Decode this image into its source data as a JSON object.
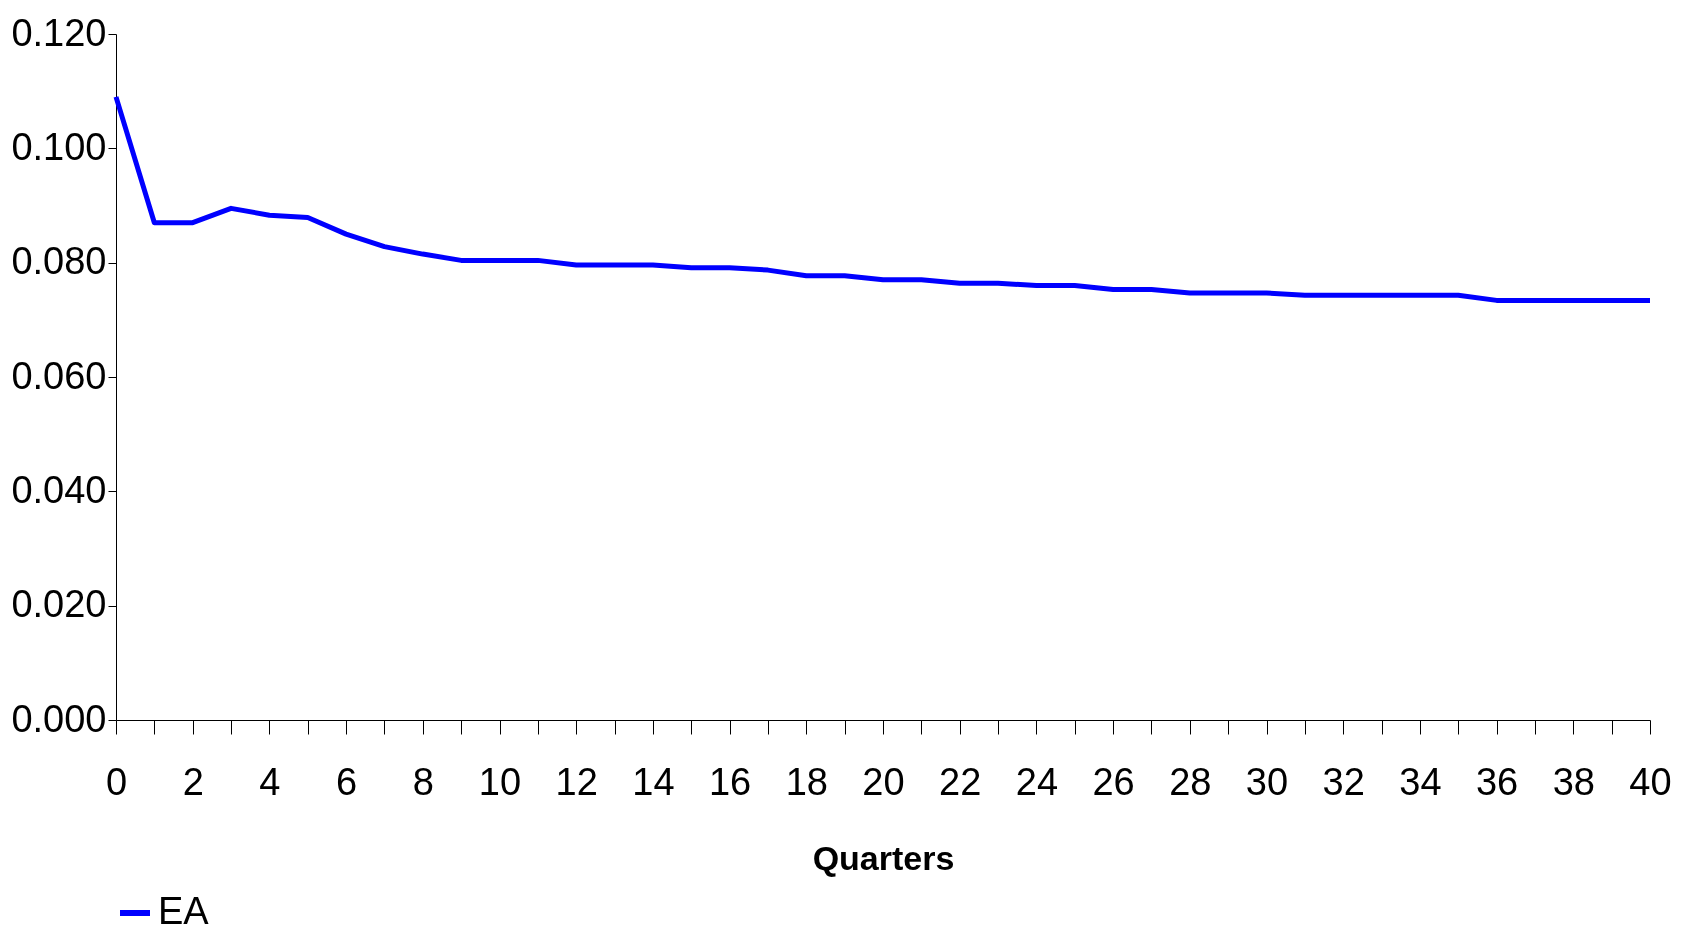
{
  "chart_data": {
    "type": "line",
    "xlabel": "Quarters",
    "x": [
      0,
      1,
      2,
      3,
      4,
      5,
      6,
      7,
      8,
      9,
      10,
      11,
      12,
      13,
      14,
      15,
      16,
      17,
      18,
      19,
      20,
      21,
      22,
      23,
      24,
      25,
      26,
      27,
      28,
      29,
      30,
      31,
      32,
      33,
      34,
      35,
      36,
      37,
      38,
      39,
      40
    ],
    "series": [
      {
        "name": "EA",
        "color": "#0000ff",
        "values": [
          0.109,
          0.087,
          0.087,
          0.0895,
          0.0883,
          0.0879,
          0.085,
          0.0828,
          0.0815,
          0.0804,
          0.0804,
          0.0804,
          0.0796,
          0.0796,
          0.0796,
          0.0791,
          0.0791,
          0.0787,
          0.0777,
          0.0777,
          0.077,
          0.077,
          0.0764,
          0.0764,
          0.076,
          0.076,
          0.0753,
          0.0753,
          0.0747,
          0.0747,
          0.0747,
          0.0743,
          0.0743,
          0.0743,
          0.0743,
          0.0743,
          0.0734,
          0.0734,
          0.0734,
          0.0734,
          0.0734
        ]
      }
    ],
    "xlim": [
      0,
      40
    ],
    "xticks": [
      0,
      {
        "value": 1,
        "label": null
      },
      2,
      {
        "value": 3,
        "label": null
      },
      4,
      {
        "value": 5,
        "label": null
      },
      6,
      {
        "value": 7,
        "label": null
      },
      8,
      {
        "value": 9,
        "label": null
      },
      10,
      {
        "value": 11,
        "label": null
      },
      12,
      {
        "value": 13,
        "label": null
      },
      14,
      {
        "value": 15,
        "label": null
      },
      16,
      {
        "value": 17,
        "label": null
      },
      18,
      {
        "value": 19,
        "label": null
      },
      20,
      {
        "value": 21,
        "label": null
      },
      22,
      {
        "value": 23,
        "label": null
      },
      24,
      {
        "value": 25,
        "label": null
      },
      26,
      {
        "value": 27,
        "label": null
      },
      28,
      {
        "value": 29,
        "label": null
      },
      30,
      {
        "value": 31,
        "label": null
      },
      32,
      {
        "value": 33,
        "label": null
      },
      34,
      {
        "value": 35,
        "label": null
      },
      36,
      {
        "value": 37,
        "label": null
      },
      38,
      {
        "value": 39,
        "label": null
      },
      40
    ],
    "ylim": [
      0,
      0.12
    ],
    "yticks": [
      {
        "value": 0,
        "label": "0.000"
      },
      {
        "value": 0.02,
        "label": "0.020"
      },
      {
        "value": 0.04,
        "label": "0.040"
      },
      {
        "value": 0.06,
        "label": "0.060"
      },
      {
        "value": 0.08,
        "label": "0.080"
      },
      {
        "value": 0.1,
        "label": "0.100"
      },
      {
        "value": 0.12,
        "label": "0.120"
      }
    ],
    "grid": false,
    "legend": "bottom",
    "marker": "none",
    "line_style": "solid"
  }
}
